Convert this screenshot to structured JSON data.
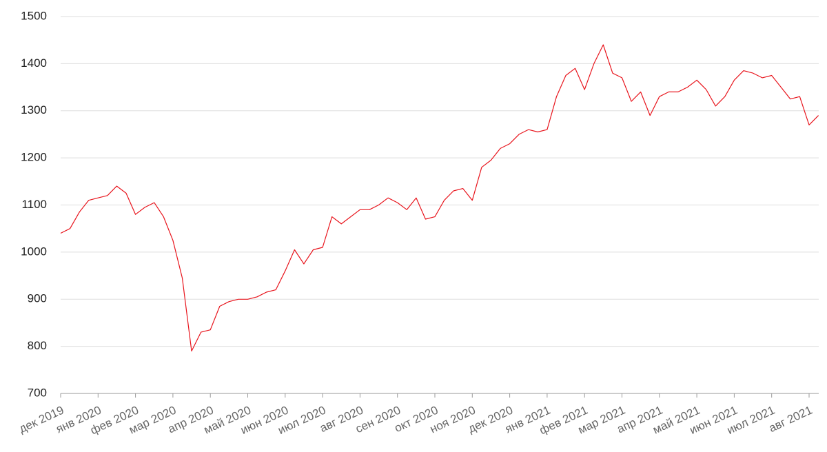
{
  "chart_data": {
    "type": "line",
    "categories": [
      "дек 2019",
      null,
      null,
      null,
      "янв 2020",
      null,
      null,
      null,
      "фев 2020",
      null,
      null,
      null,
      "мар 2020",
      null,
      null,
      null,
      "апр 2020",
      null,
      null,
      null,
      "май 2020",
      null,
      null,
      null,
      "июн 2020",
      null,
      null,
      null,
      "июл 2020",
      null,
      null,
      null,
      "авг 2020",
      null,
      null,
      null,
      "сен 2020",
      null,
      null,
      null,
      "окт 2020",
      null,
      null,
      null,
      "ноя 2020",
      null,
      null,
      null,
      "дек 2020",
      null,
      null,
      null,
      "янв 2021",
      null,
      null,
      null,
      "фев 2021",
      null,
      null,
      null,
      "мар 2021",
      null,
      null,
      null,
      "апр 2021",
      null,
      null,
      null,
      "май 2021",
      null,
      null,
      null,
      "июн 2021",
      null,
      null,
      null,
      "июл 2021",
      null,
      null,
      null,
      "авг 2021",
      null
    ],
    "values": [
      1040,
      1050,
      1085,
      1110,
      1115,
      1120,
      1140,
      1125,
      1080,
      1095,
      1105,
      1075,
      1025,
      945,
      790,
      830,
      835,
      885,
      895,
      900,
      900,
      905,
      915,
      920,
      960,
      1005,
      975,
      1005,
      1010,
      1075,
      1060,
      1075,
      1090,
      1090,
      1100,
      1115,
      1105,
      1090,
      1115,
      1070,
      1075,
      1110,
      1130,
      1135,
      1110,
      1180,
      1195,
      1220,
      1230,
      1250,
      1260,
      1255,
      1260,
      1330,
      1375,
      1390,
      1345,
      1400,
      1440,
      1380,
      1370,
      1320,
      1340,
      1290,
      1330,
      1340,
      1340,
      1350,
      1365,
      1345,
      1310,
      1330,
      1365,
      1385,
      1380,
      1370,
      1375,
      1350,
      1325,
      1330,
      1270,
      1290
    ],
    "color": "#e8141c",
    "ylim": [
      700,
      1500
    ],
    "yticks": [
      700,
      800,
      900,
      1000,
      1100,
      1200,
      1300,
      1400,
      1500
    ],
    "grid": true
  }
}
